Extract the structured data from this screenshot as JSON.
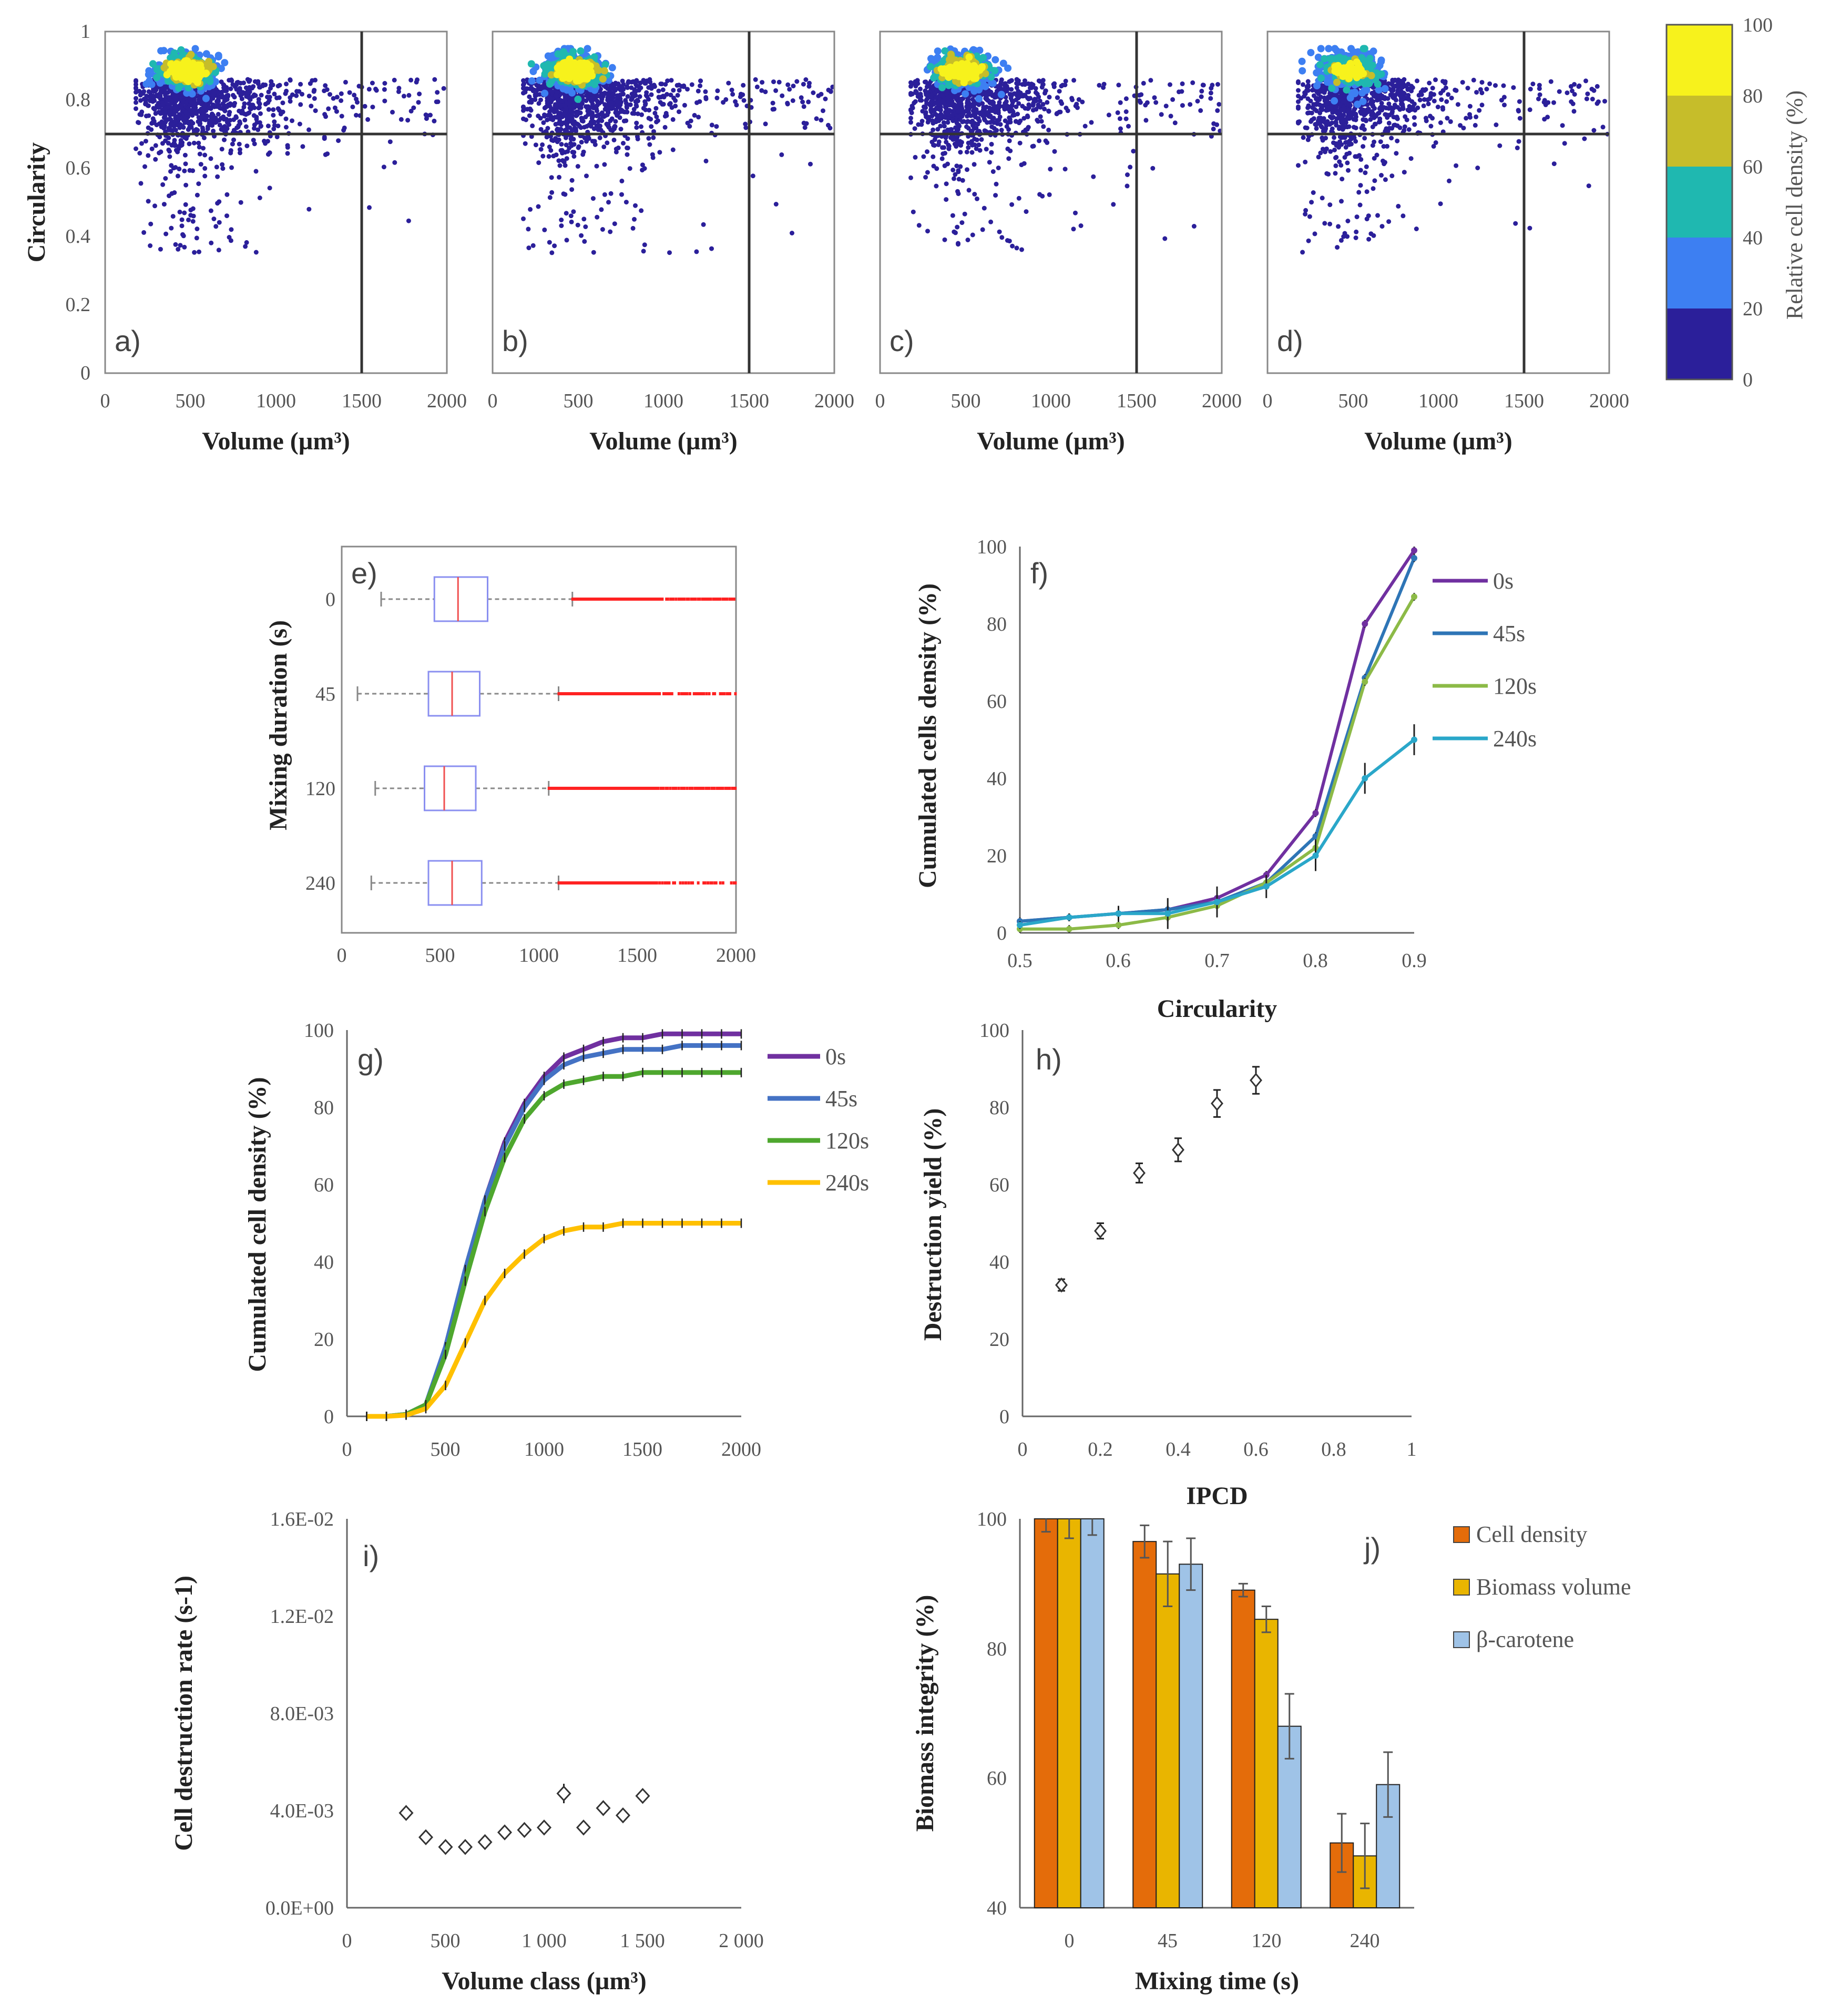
{
  "chart_data": [
    {
      "id": "a",
      "type": "scatter",
      "panel_label": "a)",
      "xlabel": "Volume (µm³)",
      "ylabel": "Circularity",
      "xlim": [
        0,
        2000
      ],
      "ylim": [
        0,
        1
      ],
      "xticks": [
        "0",
        "500",
        "1000",
        "1500",
        "2000"
      ],
      "yticks": [
        "0",
        "0.2",
        "0.4",
        "0.6",
        "0.8",
        "1"
      ],
      "gate_x": 1500,
      "gate_y": 0.7,
      "point_density": 1.0
    },
    {
      "id": "b",
      "type": "scatter",
      "panel_label": "b)",
      "xlabel": "Volume (µm³)",
      "xlim": [
        0,
        2000
      ],
      "ylim": [
        0,
        1
      ],
      "xticks": [
        "0",
        "500",
        "1000",
        "1500",
        "2000"
      ],
      "gate_x": 1500,
      "gate_y": 0.7,
      "point_density": 0.95
    },
    {
      "id": "c",
      "type": "scatter",
      "panel_label": "c)",
      "xlabel": "Volume (µm³)",
      "xlim": [
        0,
        2000
      ],
      "ylim": [
        0,
        1
      ],
      "xticks": [
        "0",
        "500",
        "1000",
        "1500",
        "2000"
      ],
      "gate_x": 1500,
      "gate_y": 0.7,
      "point_density": 0.85
    },
    {
      "id": "d",
      "type": "scatter",
      "panel_label": "d)",
      "xlabel": "Volume (µm³)",
      "xlim": [
        0,
        2000
      ],
      "ylim": [
        0,
        1
      ],
      "xticks": [
        "0",
        "500",
        "1000",
        "1500",
        "2000"
      ],
      "gate_x": 1500,
      "gate_y": 0.7,
      "point_density": 0.5
    },
    {
      "id": "colorbar",
      "type": "heatmap",
      "title": "Relative cell density (%)",
      "ticks": [
        "0",
        "20",
        "40",
        "60",
        "80",
        "100"
      ],
      "colors": [
        "#2b1f9a",
        "#3d7ff2",
        "#1fb8b0",
        "#c6bd2a",
        "#f7f21c"
      ]
    },
    {
      "id": "e",
      "type": "box",
      "panel_label": "e)",
      "ylabel": "Mixing duration (s)",
      "categories": [
        "0",
        "45",
        "120",
        "240"
      ],
      "xlim": [
        0,
        2000
      ],
      "xticks": [
        "0",
        "500",
        "1000",
        "1500",
        "2000"
      ],
      "boxes": [
        {
          "whisker_low": 200,
          "q1": 470,
          "median": 590,
          "q3": 740,
          "whisker_high": 1170,
          "outliers_from": 1170
        },
        {
          "whisker_low": 80,
          "q1": 440,
          "median": 560,
          "q3": 700,
          "whisker_high": 1100,
          "outliers_from": 1100
        },
        {
          "whisker_low": 170,
          "q1": 420,
          "median": 520,
          "q3": 680,
          "whisker_high": 1050,
          "outliers_from": 1050
        },
        {
          "whisker_low": 150,
          "q1": 440,
          "median": 560,
          "q3": 710,
          "whisker_high": 1100,
          "outliers_from": 1100
        }
      ]
    },
    {
      "id": "f",
      "type": "line",
      "panel_label": "f)",
      "xlabel": "Circularity",
      "ylabel": "Cumulated cells density (%)",
      "xlim": [
        0.5,
        0.9
      ],
      "ylim": [
        0,
        100
      ],
      "xticks": [
        "0.5",
        "0.6",
        "0.7",
        "0.8",
        "0.9"
      ],
      "yticks": [
        "0",
        "20",
        "40",
        "60",
        "80",
        "100"
      ],
      "x": [
        0.5,
        0.55,
        0.6,
        0.65,
        0.7,
        0.75,
        0.8,
        0.85,
        0.9
      ],
      "series": [
        {
          "name": "0s",
          "color": "#7030a0",
          "values": [
            3,
            4,
            5,
            6,
            9,
            15,
            31,
            80,
            99
          ],
          "err": [
            1,
            1,
            1,
            1,
            1,
            1,
            1,
            1,
            1
          ]
        },
        {
          "name": "45s",
          "color": "#2e75b6",
          "values": [
            3,
            4,
            5,
            6,
            8,
            13,
            25,
            66,
            97
          ],
          "err": [
            1,
            1,
            1,
            1,
            1,
            1,
            1,
            1,
            1
          ]
        },
        {
          "name": "120s",
          "color": "#8cba47",
          "values": [
            1,
            1,
            2,
            4,
            7,
            13,
            22,
            65,
            87
          ],
          "err": [
            1,
            1,
            1,
            1,
            1,
            1,
            1,
            1,
            1
          ]
        },
        {
          "name": "240s",
          "color": "#2aa7c9",
          "values": [
            2,
            4,
            5,
            5,
            8,
            12,
            20,
            40,
            50
          ],
          "err": [
            1,
            1,
            2,
            4,
            4,
            3,
            4,
            4,
            4
          ]
        }
      ]
    },
    {
      "id": "g",
      "type": "line",
      "panel_label": "g)",
      "ylabel": "Cumulated cell density (%)",
      "xlim": [
        0,
        2000
      ],
      "ylim": [
        0,
        100
      ],
      "xticks": [
        "0",
        "500",
        "1000",
        "1500",
        "2000"
      ],
      "yticks": [
        "0",
        "20",
        "40",
        "60",
        "80",
        "100"
      ],
      "x": [
        100,
        200,
        300,
        400,
        500,
        600,
        700,
        800,
        900,
        1000,
        1100,
        1200,
        1300,
        1400,
        1500,
        1600,
        1700,
        1800,
        1900,
        2000
      ],
      "series": [
        {
          "name": "0s",
          "color": "#7030a0",
          "values": [
            0,
            0,
            0.5,
            3,
            17,
            37,
            56,
            71,
            81,
            88,
            93,
            95,
            97,
            98,
            98,
            99,
            99,
            99,
            99,
            99
          ]
        },
        {
          "name": "45s",
          "color": "#4472c4",
          "values": [
            0,
            0,
            0.5,
            3,
            18,
            38,
            56,
            70,
            80,
            87,
            91,
            93,
            94,
            95,
            95,
            95,
            96,
            96,
            96,
            96
          ]
        },
        {
          "name": "120s",
          "color": "#4ea72e",
          "values": [
            0,
            0,
            0.5,
            3,
            16,
            35,
            53,
            67,
            77,
            83,
            86,
            87,
            88,
            88,
            89,
            89,
            89,
            89,
            89,
            89
          ]
        },
        {
          "name": "240s",
          "color": "#ffc000",
          "values": [
            0,
            0,
            0.3,
            2,
            8,
            19,
            30,
            37,
            42,
            46,
            48,
            49,
            49,
            50,
            50,
            50,
            50,
            50,
            50,
            50
          ]
        }
      ]
    },
    {
      "id": "h",
      "type": "scatter",
      "panel_label": "h)",
      "xlabel": "IPCD",
      "ylabel": "Destruction yield (%)",
      "xlim": [
        0,
        1
      ],
      "ylim": [
        0,
        100
      ],
      "xticks": [
        "0",
        "0.2",
        "0.4",
        "0.6",
        "0.8",
        "1"
      ],
      "yticks": [
        "0",
        "20",
        "40",
        "60",
        "80",
        "100"
      ],
      "x": [
        0.1,
        0.2,
        0.3,
        0.4,
        0.5,
        0.6
      ],
      "y": [
        34,
        48,
        63,
        69,
        81,
        87
      ],
      "err": [
        1.5,
        2,
        2.5,
        3,
        3.5,
        3.5
      ]
    },
    {
      "id": "i",
      "type": "scatter",
      "panel_label": "i)",
      "xlabel": "Volume class (µm³)",
      "ylabel": "Cell destruction rate (s-1)",
      "xlim": [
        0,
        2000
      ],
      "ylim": [
        0,
        0.016
      ],
      "xticks": [
        "0",
        "500",
        "1 000",
        "1 500",
        "2 000"
      ],
      "yticks": [
        "0.0E+00",
        "4.0E-03",
        "8.0E-03",
        "1.2E-02",
        "1.6E-02"
      ],
      "x": [
        300,
        400,
        500,
        600,
        700,
        800,
        900,
        1000,
        1100,
        1200,
        1300,
        1400,
        1500
      ],
      "y": [
        0.0039,
        0.0029,
        0.0025,
        0.0025,
        0.0027,
        0.0031,
        0.0032,
        0.0033,
        0.0047,
        0.0033,
        0.0041,
        0.0038,
        0.0046
      ],
      "err": [
        0.0003,
        0.0002,
        0.0002,
        0.0002,
        0.0002,
        0.0002,
        0.0002,
        0.0002,
        0.0004,
        0.0002,
        0.0003,
        0.0003,
        0.0003
      ]
    },
    {
      "id": "j",
      "type": "bar",
      "panel_label": "j)",
      "xlabel": "Mixing time (s)",
      "ylabel": "Biomass integrity (%)",
      "categories": [
        "0",
        "45",
        "120",
        "240"
      ],
      "ylim": [
        40,
        100
      ],
      "yticks": [
        "40",
        "60",
        "80",
        "100"
      ],
      "series": [
        {
          "name": "Cell density",
          "color": "#e46c0a",
          "values": [
            100,
            96.5,
            89,
            50
          ],
          "err": [
            2,
            2.5,
            1,
            4.5
          ]
        },
        {
          "name": "Biomass volume",
          "color": "#e9b500",
          "values": [
            100,
            91.5,
            84.5,
            48
          ],
          "err": [
            3,
            5,
            2,
            5
          ]
        },
        {
          "name": "β-carotene",
          "color": "#9fc3e7",
          "values": [
            100,
            93,
            68,
            59
          ],
          "err": [
            2.5,
            4,
            5,
            5
          ]
        }
      ]
    }
  ]
}
